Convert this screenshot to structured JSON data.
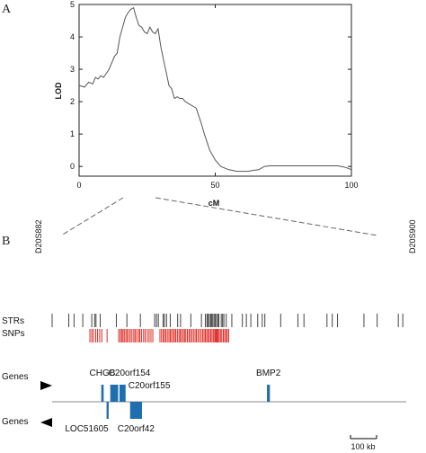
{
  "panel_a": {
    "letter": "A"
  },
  "panel_b": {
    "letter": "B"
  },
  "chart_data": [
    {
      "type": "line",
      "title": "",
      "xlabel": "cM",
      "ylabel": "LOD",
      "xlim": [
        0,
        100
      ],
      "ylim": [
        -0.3,
        5
      ],
      "xticks": [
        "0",
        "50",
        "100"
      ],
      "yticks": [
        "0",
        "1",
        "2",
        "3",
        "4",
        "5"
      ],
      "grid": false,
      "line_color": "#555555",
      "series": [
        {
          "x": [
            0,
            2,
            3.5,
            5,
            6,
            7,
            8,
            9,
            11,
            13,
            14,
            15,
            17,
            18,
            19,
            20,
            21,
            22,
            23,
            24,
            25,
            26,
            27,
            28,
            29,
            30,
            31,
            32,
            33,
            34,
            35,
            36,
            37,
            38,
            39,
            40,
            41,
            42,
            43,
            44,
            45,
            46,
            47,
            48,
            50,
            52,
            55,
            58,
            60,
            62,
            64,
            66,
            68,
            70,
            75,
            80,
            85,
            90,
            95,
            98,
            100
          ],
          "y": [
            2.5,
            2.45,
            2.6,
            2.55,
            2.75,
            2.7,
            2.8,
            2.75,
            3.0,
            3.4,
            3.5,
            4.0,
            4.6,
            4.75,
            4.85,
            4.9,
            4.6,
            4.35,
            4.3,
            4.15,
            4.1,
            4.3,
            4.15,
            4.1,
            4.25,
            3.7,
            3.3,
            2.9,
            2.5,
            2.4,
            2.1,
            2.15,
            2.1,
            2.1,
            2.0,
            1.95,
            1.9,
            1.85,
            1.8,
            1.55,
            1.3,
            1.0,
            0.75,
            0.5,
            0.2,
            0.0,
            -0.1,
            -0.15,
            -0.15,
            -0.15,
            -0.12,
            -0.1,
            0.0,
            0.02,
            0.02,
            0.02,
            0.02,
            0.02,
            0.02,
            -0.03,
            -0.1
          ]
        }
      ]
    },
    {
      "type": "table",
      "title": "",
      "xlim_kb": [
        0,
        1340
      ],
      "flank_markers": [
        "D20S882",
        "D20S900"
      ],
      "rows": [
        "STRs",
        "SNPs",
        "Genes",
        "Genes"
      ],
      "str_color": "#444444",
      "snp_color": "#dd2a24",
      "gene_color": "#1f6eb0",
      "strs_kb": [
        0,
        63,
        83,
        116,
        150,
        161,
        166,
        182,
        243,
        283,
        334,
        388,
        395,
        402,
        420,
        425,
        433,
        447,
        475,
        486,
        525,
        565,
        580,
        586,
        590,
        595,
        600,
        604,
        608,
        613,
        617,
        622,
        627,
        631,
        640,
        645,
        650,
        659,
        680,
        720,
        735,
        752,
        778,
        795,
        805,
        865,
        930,
        953,
        1040,
        1060,
        1080,
        1180,
        1230,
        1310,
        1327
      ],
      "snps_kb": [
        143,
        150,
        156,
        165,
        172,
        180,
        188,
        208,
        252,
        258,
        263,
        268,
        273,
        279,
        284,
        290,
        296,
        302,
        309,
        314,
        320,
        327,
        332,
        338,
        346,
        352,
        360,
        367,
        374,
        381,
        408,
        414,
        420,
        425,
        430,
        436,
        442,
        447,
        452,
        458,
        463,
        468,
        474,
        480,
        485,
        490,
        496,
        501,
        506,
        512,
        518,
        523,
        529,
        535,
        541,
        546,
        552,
        558,
        564,
        570,
        575,
        580,
        585,
        590,
        595,
        600,
        605,
        610,
        615,
        618,
        621,
        624,
        628,
        632,
        637,
        642,
        648,
        653,
        658,
        663,
        668
      ],
      "genes_forward": [
        {
          "name": "CHGB",
          "start_kb": 186,
          "end_kb": 195
        },
        {
          "name": "C20orf154",
          "start_kb": 220,
          "end_kb": 250
        },
        {
          "name": "C20orf155",
          "start_kb": 255,
          "end_kb": 278
        },
        {
          "name": "BMP2",
          "start_kb": 813,
          "end_kb": 824
        }
      ],
      "genes_reverse": [
        {
          "name": "LOC51605",
          "start_kb": 206,
          "end_kb": 214
        },
        {
          "name": "C20orf42",
          "start_kb": 295,
          "end_kb": 340
        }
      ],
      "scale_bar": {
        "label": "100 kb",
        "length_kb": 100
      }
    }
  ]
}
